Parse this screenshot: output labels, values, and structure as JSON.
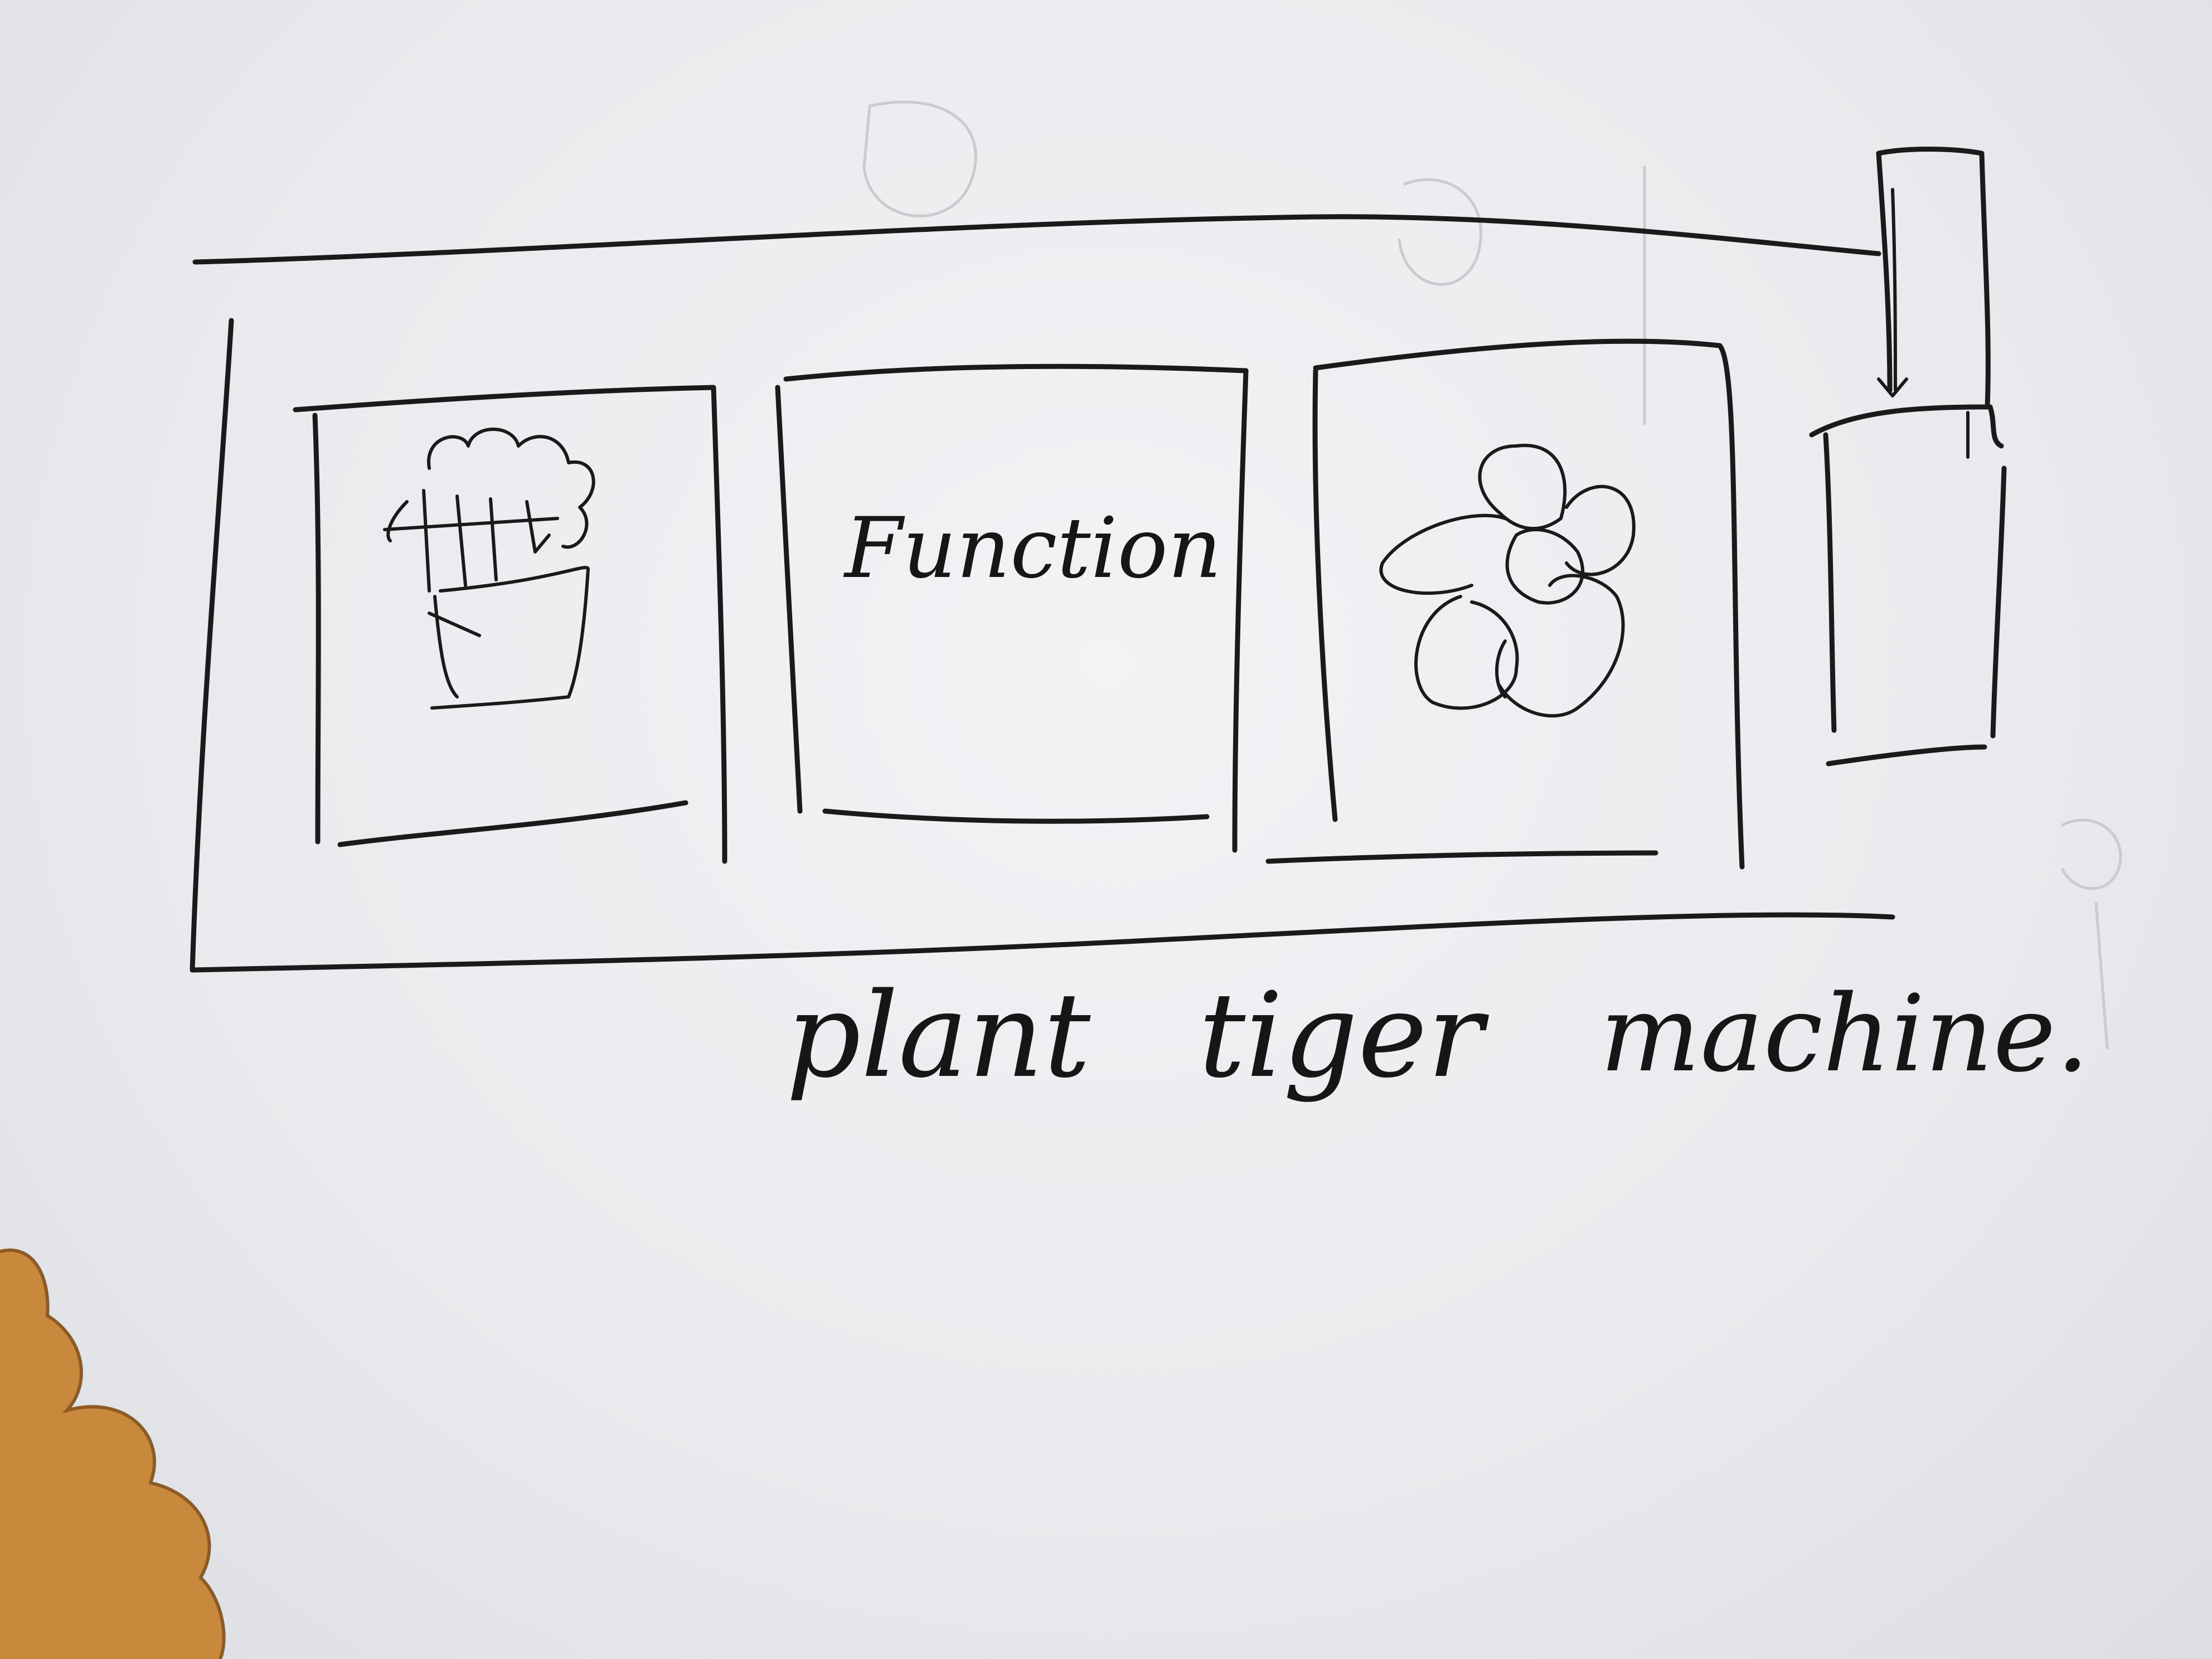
{
  "panels": [
    {
      "id": "plant-card",
      "icon": "potted-plant-icon"
    },
    {
      "id": "function-card",
      "label": "Function"
    },
    {
      "id": "flower-card",
      "icon": "flower-icon"
    }
  ],
  "scrollbar": {
    "icon": "scrollbar-thumb"
  },
  "captions": {
    "plant": "plant",
    "tiger": "tiger",
    "machine": "machine."
  },
  "colors": {
    "paper": "#eceef1",
    "ink": "#1a1a1a",
    "table": "#c98a3e"
  }
}
